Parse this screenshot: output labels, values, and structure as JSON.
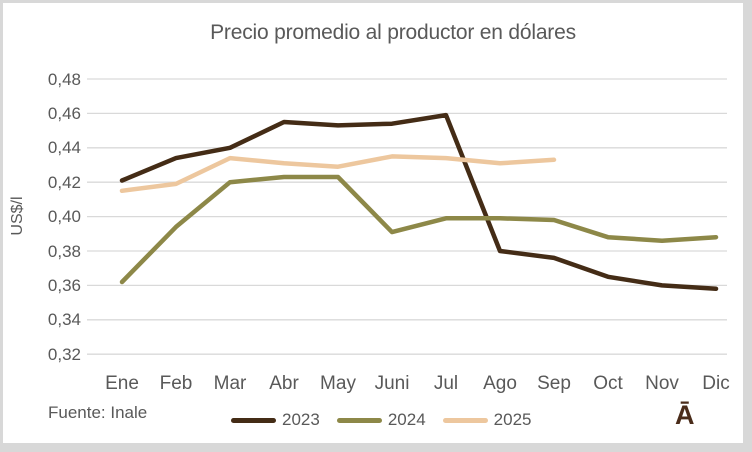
{
  "chart": {
    "title": "Precio promedio al productor en dólares",
    "source_note": "Fuente: Inale",
    "corner_glyph": "Ā",
    "colors": {
      "text": "#595959",
      "gridline": "#d9d9d9",
      "frame": "#d8d8d8",
      "glyph": "#4a2c1a"
    }
  },
  "chart_data": {
    "type": "line",
    "title": "Precio promedio al productor en dólares",
    "xlabel": "",
    "ylabel": "US$/l",
    "categories": [
      "Ene",
      "Feb",
      "Mar",
      "Abr",
      "May",
      "Juni",
      "Jul",
      "Ago",
      "Sep",
      "Oct",
      "Nov",
      "Dic"
    ],
    "series": [
      {
        "name": "2023",
        "color": "#442c16",
        "values": [
          0.421,
          0.434,
          0.44,
          0.455,
          0.453,
          0.454,
          0.459,
          0.38,
          0.376,
          0.365,
          0.36,
          0.358
        ]
      },
      {
        "name": "2024",
        "color": "#8d8848",
        "values": [
          0.362,
          0.394,
          0.42,
          0.423,
          0.423,
          0.391,
          0.399,
          0.399,
          0.398,
          0.388,
          0.386,
          0.388
        ]
      },
      {
        "name": "2025",
        "color": "#edc79e",
        "values": [
          0.415,
          0.419,
          0.434,
          0.431,
          0.429,
          0.435,
          0.434,
          0.431,
          0.433
        ]
      }
    ],
    "ylim": [
      0.32,
      0.48
    ],
    "ytick_step": 0.02,
    "ytick_labels": [
      "0,48",
      "0,46",
      "0,44",
      "0,42",
      "0,40",
      "0,38",
      "0,36",
      "0,34",
      "0,32"
    ],
    "decimal_separator": ",",
    "grid": true,
    "legend_position": "bottom"
  }
}
